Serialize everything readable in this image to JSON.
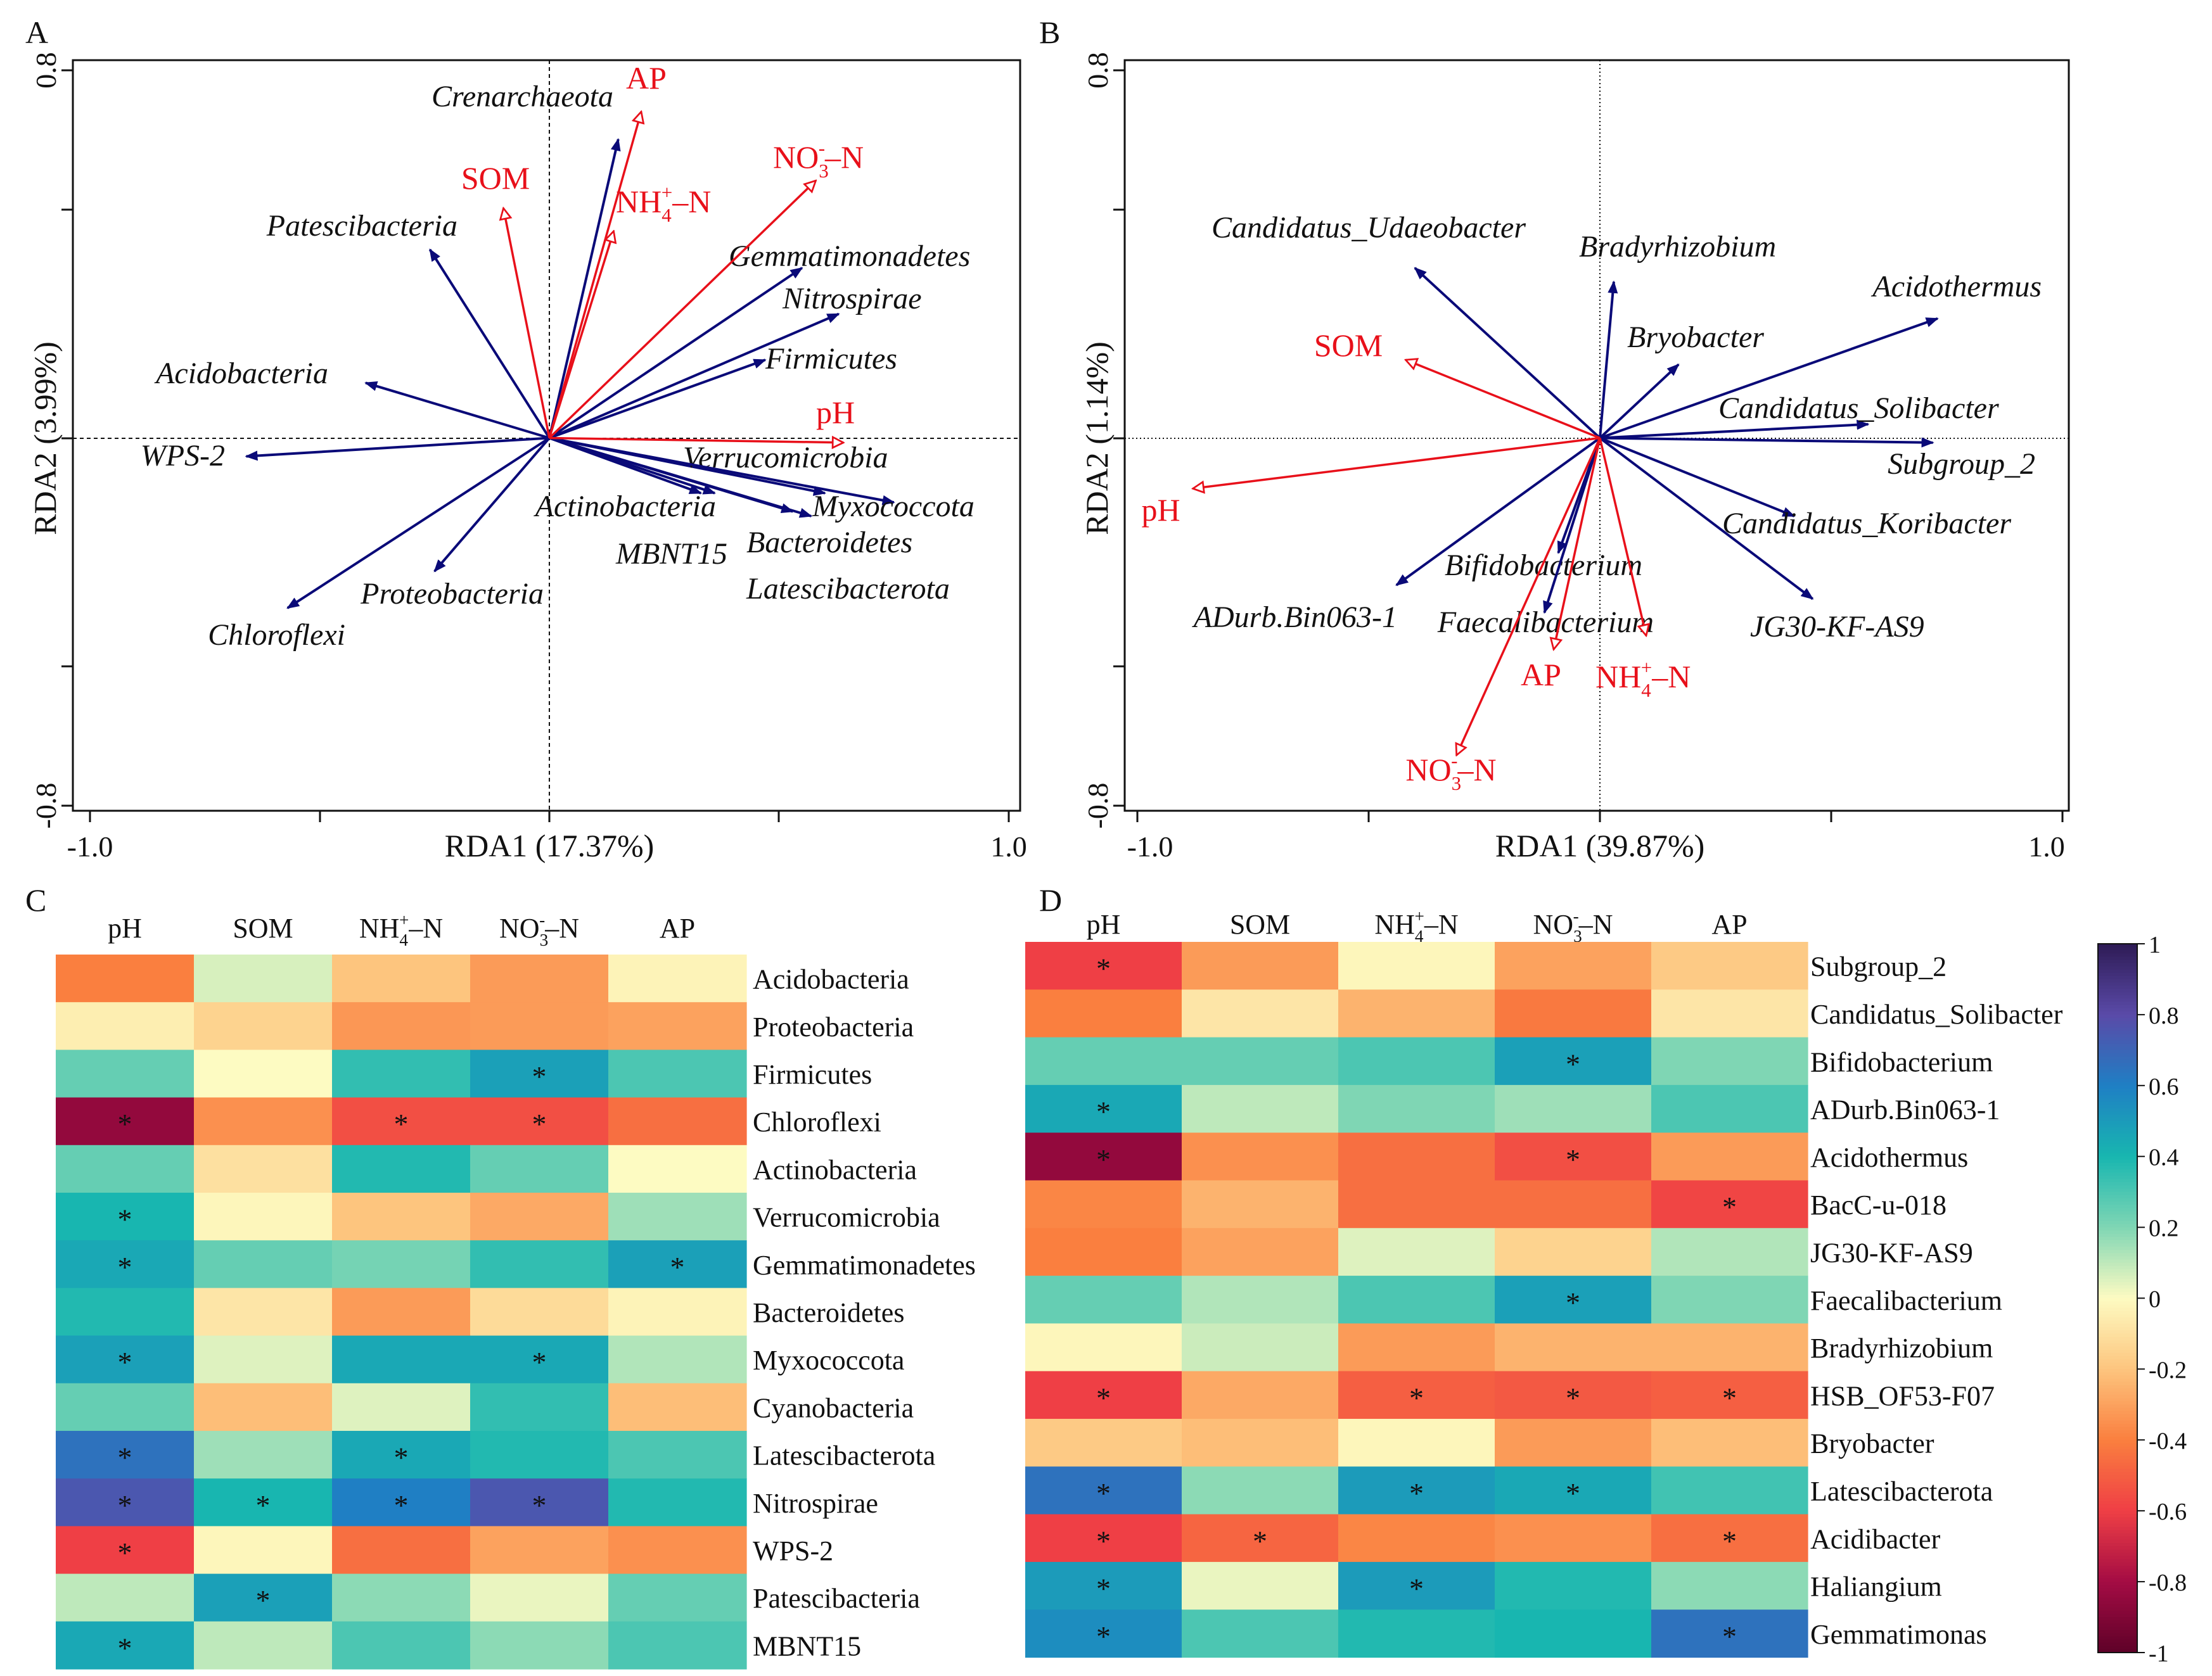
{
  "chart_data": [
    {
      "type": "scatter",
      "subtype": "rda-biplot",
      "panel": "A",
      "xlabel": "RDA1 (17.37%)",
      "ylabel": "RDA2 (3.99%)",
      "xlim": [
        -1.0,
        1.0
      ],
      "ylim": [
        -0.8,
        0.8
      ],
      "x_tick_labels": [
        "-1.0",
        "1.0"
      ],
      "y_tick_labels": [
        "0.8",
        "-0.8"
      ],
      "species": [
        {
          "name": "Crenarchaeota",
          "x": 0.15,
          "y": 0.65
        },
        {
          "name": "Patescibacteria",
          "x": -0.26,
          "y": 0.41
        },
        {
          "name": "Acidobacteria",
          "x": -0.4,
          "y": 0.12
        },
        {
          "name": "WPS-2",
          "x": -0.66,
          "y": -0.04
        },
        {
          "name": "Chloroflexi",
          "x": -0.57,
          "y": -0.37
        },
        {
          "name": "Proteobacteria",
          "x": -0.25,
          "y": -0.29
        },
        {
          "name": "Gemmatimonadetes",
          "x": 0.55,
          "y": 0.37
        },
        {
          "name": "Nitrospirae",
          "x": 0.63,
          "y": 0.27
        },
        {
          "name": "Firmicutes",
          "x": 0.47,
          "y": 0.17
        },
        {
          "name": "Verrucomicrobia",
          "x": 0.6,
          "y": -0.12
        },
        {
          "name": "Myxococcota",
          "x": 0.75,
          "y": -0.14
        },
        {
          "name": "Actinobacteria",
          "x": 0.33,
          "y": -0.12
        },
        {
          "name": "MBNT15",
          "x": 0.36,
          "y": -0.12
        },
        {
          "name": "Bacteroidetes",
          "x": 0.53,
          "y": -0.16
        },
        {
          "name": "Latescibacterota",
          "x": 0.57,
          "y": -0.17
        }
      ],
      "env": [
        {
          "name": "AP",
          "x": 0.2,
          "y": 0.71
        },
        {
          "name": "SOM",
          "x": -0.1,
          "y": 0.5
        },
        {
          "name": "NH4+–N",
          "x": 0.14,
          "y": 0.45
        },
        {
          "name": "NO3-–N",
          "x": 0.58,
          "y": 0.56
        },
        {
          "name": "pH",
          "x": 0.64,
          "y": -0.01
        }
      ],
      "env_display": {
        "AP": {
          "main": "AP"
        },
        "SOM": {
          "main": "SOM"
        },
        "NH4+–N": {
          "main": "NH",
          "sub": "4",
          "sup": "+",
          "tail": "–N"
        },
        "NO3-–N": {
          "main": "NO",
          "sub": "3",
          "sup": "-",
          "tail": "–N"
        },
        "pH": {
          "main": "pH"
        }
      }
    },
    {
      "type": "scatter",
      "subtype": "rda-biplot",
      "panel": "B",
      "xlabel": "RDA1 (39.87%)",
      "ylabel": "RDA2 (1.14%)",
      "xlim": [
        -1.0,
        1.0
      ],
      "ylim": [
        -0.8,
        0.8
      ],
      "x_tick_labels": [
        "-1.0",
        "1.0"
      ],
      "y_tick_labels": [
        "0.8",
        "-0.8"
      ],
      "species": [
        {
          "name": "Candidatus_Udaeobacter",
          "x": -0.4,
          "y": 0.37
        },
        {
          "name": "Bradyrhizobium",
          "x": 0.03,
          "y": 0.34
        },
        {
          "name": "Bryobacter",
          "x": 0.17,
          "y": 0.16
        },
        {
          "name": "Acidothermus",
          "x": 0.73,
          "y": 0.26
        },
        {
          "name": "Candidatus_Solibacter",
          "x": 0.58,
          "y": 0.03
        },
        {
          "name": "Subgroup_2",
          "x": 0.72,
          "y": -0.01
        },
        {
          "name": "Candidatus_Koribacter",
          "x": 0.42,
          "y": -0.17
        },
        {
          "name": "JG30-KF-AS9",
          "x": 0.46,
          "y": -0.35
        },
        {
          "name": "Bifidobacterium",
          "x": -0.09,
          "y": -0.25
        },
        {
          "name": "Faecalibacterium",
          "x": -0.12,
          "y": -0.38
        },
        {
          "name": "ADurb.Bin063-1",
          "x": -0.44,
          "y": -0.32
        }
      ],
      "env": [
        {
          "name": "SOM",
          "x": -0.42,
          "y": 0.17
        },
        {
          "name": "pH",
          "x": -0.88,
          "y": -0.11
        },
        {
          "name": "AP",
          "x": -0.1,
          "y": -0.46
        },
        {
          "name": "NH4+–N",
          "x": 0.1,
          "y": -0.43
        },
        {
          "name": "NO3-–N",
          "x": -0.31,
          "y": -0.69
        }
      ],
      "env_display": {
        "AP": {
          "main": "AP"
        },
        "SOM": {
          "main": "SOM"
        },
        "NH4+–N": {
          "main": "NH",
          "sub": "4",
          "sup": "+",
          "tail": "–N"
        },
        "NO3-–N": {
          "main": "NO",
          "sub": "3",
          "sup": "-",
          "tail": "–N"
        },
        "pH": {
          "main": "pH"
        }
      }
    },
    {
      "type": "heatmap",
      "panel": "C",
      "columns": [
        "pH",
        "SOM",
        "NH4+–N",
        "NO3-–N",
        "AP"
      ],
      "column_display": [
        {
          "main": "pH"
        },
        {
          "main": "SOM"
        },
        {
          "main": "NH",
          "sub": "4",
          "sup": "+",
          "tail": "–N"
        },
        {
          "main": "NO",
          "sub": "3",
          "sup": "-",
          "tail": "–N"
        },
        {
          "main": "AP"
        }
      ],
      "rows": [
        "Acidobacteria",
        "Proteobacteria",
        "Firmicutes",
        "Chloroflexi",
        "Actinobacteria",
        "Verrucomicrobia",
        "Gemmatimonadetes",
        "Bacteroidetes",
        "Myxococcota",
        "Cyanobacteria",
        "Latescibacterota",
        "Nitrospirae",
        "WPS-2",
        "Patescibacteria",
        "MBNT15"
      ],
      "values": [
        [
          -0.4,
          0.06,
          -0.2,
          -0.32,
          -0.03
        ],
        [
          -0.05,
          -0.15,
          -0.33,
          -0.32,
          -0.3
        ],
        [
          0.25,
          0.0,
          0.35,
          0.48,
          0.3
        ],
        [
          -0.85,
          -0.35,
          -0.55,
          -0.55,
          -0.45
        ],
        [
          0.25,
          -0.1,
          0.38,
          0.25,
          0.0
        ],
        [
          0.4,
          -0.02,
          -0.2,
          -0.28,
          0.15
        ],
        [
          0.45,
          0.25,
          0.22,
          0.35,
          0.48
        ],
        [
          0.38,
          -0.08,
          -0.32,
          -0.12,
          -0.03
        ],
        [
          0.48,
          0.05,
          0.45,
          0.45,
          0.12
        ],
        [
          0.25,
          -0.22,
          0.05,
          0.35,
          -0.22
        ],
        [
          0.65,
          0.15,
          0.45,
          0.38,
          0.3
        ],
        [
          0.75,
          0.4,
          0.6,
          0.75,
          0.38
        ],
        [
          -0.6,
          -0.02,
          -0.45,
          -0.3,
          -0.35
        ],
        [
          0.1,
          0.48,
          0.18,
          0.03,
          0.25
        ],
        [
          0.45,
          0.1,
          0.3,
          0.18,
          0.3
        ]
      ],
      "significant": [
        [
          false,
          false,
          false,
          false,
          false
        ],
        [
          false,
          false,
          false,
          false,
          false
        ],
        [
          false,
          false,
          false,
          true,
          false
        ],
        [
          true,
          false,
          true,
          true,
          false
        ],
        [
          false,
          false,
          false,
          false,
          false
        ],
        [
          true,
          false,
          false,
          false,
          false
        ],
        [
          true,
          false,
          false,
          false,
          true
        ],
        [
          false,
          false,
          false,
          false,
          false
        ],
        [
          true,
          false,
          false,
          true,
          false
        ],
        [
          false,
          false,
          false,
          false,
          false
        ],
        [
          true,
          false,
          true,
          false,
          false
        ],
        [
          true,
          true,
          true,
          true,
          false
        ],
        [
          true,
          false,
          false,
          false,
          false
        ],
        [
          false,
          true,
          false,
          false,
          false
        ],
        [
          true,
          false,
          false,
          false,
          false
        ]
      ],
      "significance_marker": "*"
    },
    {
      "type": "heatmap",
      "panel": "D",
      "columns": [
        "pH",
        "SOM",
        "NH4+–N",
        "NO3-–N",
        "AP"
      ],
      "column_display": [
        {
          "main": "pH"
        },
        {
          "main": "SOM"
        },
        {
          "main": "NH",
          "sub": "4",
          "sup": "+",
          "tail": "–N"
        },
        {
          "main": "NO",
          "sub": "3",
          "sup": "-",
          "tail": "–N"
        },
        {
          "main": "AP"
        }
      ],
      "rows": [
        "Subgroup_2",
        "Candidatus_Solibacter",
        "Bifidobacterium",
        "ADurb.Bin063-1",
        "Acidothermus",
        "BacC-u-018",
        "JG30-KF-AS9",
        "Faecalibacterium",
        "Bradyrhizobium",
        "HSB_OF53-F07",
        "Bryobacter",
        "Latescibacterota",
        "Acidibacter",
        "Haliangium",
        "Gemmatimonas"
      ],
      "values": [
        [
          -0.6,
          -0.32,
          -0.02,
          -0.3,
          -0.18
        ],
        [
          -0.4,
          -0.08,
          -0.25,
          -0.42,
          -0.08
        ],
        [
          0.25,
          0.25,
          0.3,
          0.48,
          0.2
        ],
        [
          0.45,
          0.1,
          0.2,
          0.15,
          0.3
        ],
        [
          -0.85,
          -0.35,
          -0.45,
          -0.55,
          -0.32
        ],
        [
          -0.38,
          -0.25,
          -0.45,
          -0.45,
          -0.58
        ],
        [
          -0.4,
          -0.3,
          0.05,
          -0.15,
          0.12
        ],
        [
          0.25,
          0.12,
          0.3,
          0.48,
          0.2
        ],
        [
          -0.02,
          0.08,
          -0.32,
          -0.25,
          -0.25
        ],
        [
          -0.6,
          -0.28,
          -0.5,
          -0.52,
          -0.5
        ],
        [
          -0.18,
          -0.22,
          -0.02,
          -0.32,
          -0.22
        ],
        [
          0.65,
          0.18,
          0.5,
          0.45,
          0.32
        ],
        [
          -0.6,
          -0.48,
          -0.38,
          -0.35,
          -0.45
        ],
        [
          0.5,
          0.03,
          0.5,
          0.38,
          0.18
        ],
        [
          0.55,
          0.3,
          0.38,
          0.4,
          0.65
        ]
      ],
      "significant": [
        [
          true,
          false,
          false,
          false,
          false
        ],
        [
          false,
          false,
          false,
          false,
          false
        ],
        [
          false,
          false,
          false,
          true,
          false
        ],
        [
          true,
          false,
          false,
          false,
          false
        ],
        [
          true,
          false,
          false,
          true,
          false
        ],
        [
          false,
          false,
          false,
          false,
          true
        ],
        [
          false,
          false,
          false,
          false,
          false
        ],
        [
          false,
          false,
          false,
          true,
          false
        ],
        [
          false,
          false,
          false,
          false,
          false
        ],
        [
          true,
          false,
          true,
          true,
          true
        ],
        [
          false,
          false,
          false,
          false,
          false
        ],
        [
          true,
          false,
          true,
          true,
          false
        ],
        [
          true,
          true,
          false,
          false,
          true
        ],
        [
          true,
          false,
          true,
          false,
          false
        ],
        [
          true,
          false,
          false,
          false,
          true
        ]
      ],
      "significance_marker": "*",
      "colorbar": {
        "min": -1,
        "max": 1,
        "tick_labels": [
          "1",
          "0.8",
          "0.6",
          "0.4",
          "0.2",
          "0",
          "-0.2",
          "-0.4",
          "-0.6",
          "-0.8",
          "-1"
        ],
        "tick_values": [
          1,
          0.8,
          0.6,
          0.4,
          0.2,
          0,
          -0.2,
          -0.4,
          -0.6,
          -0.8,
          -1
        ],
        "colors_high_to_low": [
          "#2e1b55",
          "#5a4aa8",
          "#1f7fc4",
          "#18b6b0",
          "#7fd6b4",
          "#fdfbc2",
          "#fdc57e",
          "#fa7f3f",
          "#ef3f45",
          "#a40c44",
          "#5e0128"
        ]
      }
    }
  ],
  "styles": {
    "species_arrow_color": "#0a0a78",
    "env_arrow_color": "#e8101a",
    "text_color": "#111111",
    "frame_color": "#111111"
  }
}
